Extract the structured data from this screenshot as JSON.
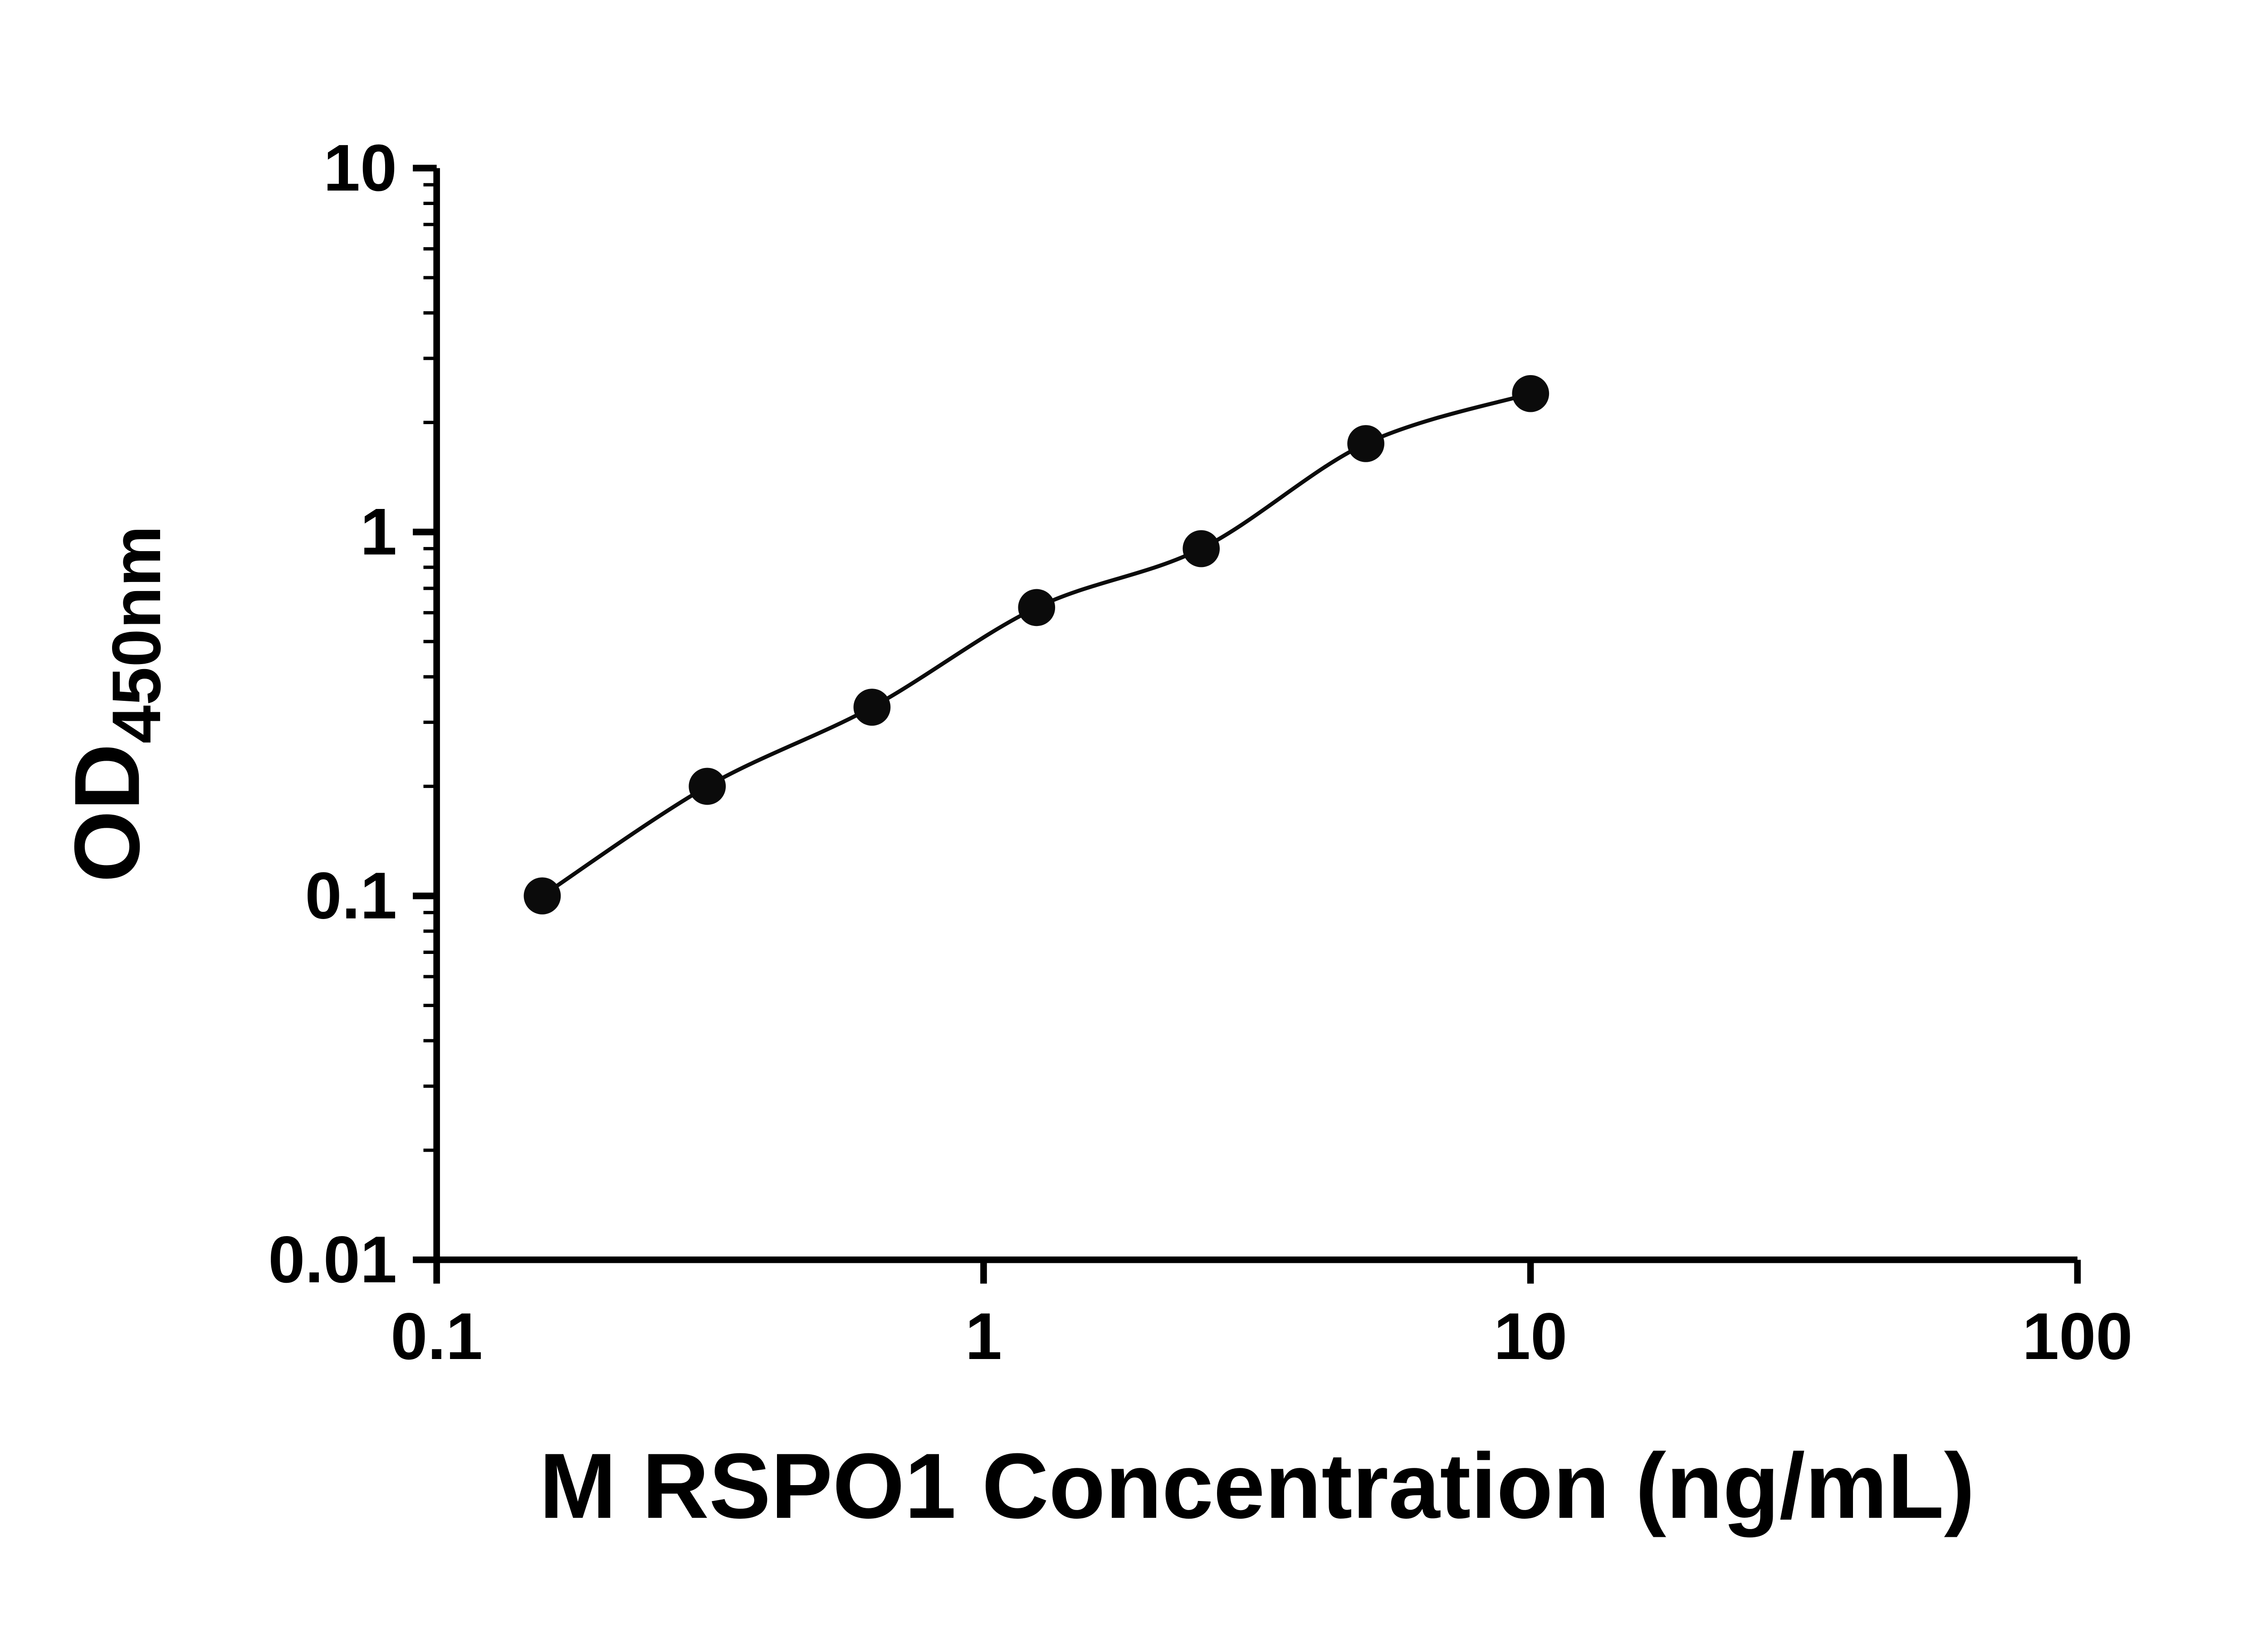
{
  "chart_data": {
    "type": "scatter",
    "subtype": "ELISA standard curve, smooth fit line through points",
    "title": "",
    "xlabel": "M RSPO1 Concentration (ng/mL)",
    "ylabel": "OD",
    "ylabel_subscript": "450nm",
    "xscale": "log10",
    "yscale": "log10",
    "xlim": [
      0.1,
      100
    ],
    "ylim": [
      0.01,
      10
    ],
    "x_ticks": [
      0.1,
      1,
      10,
      100
    ],
    "x_tick_labels": [
      "0.1",
      "1",
      "10",
      "100"
    ],
    "y_ticks": [
      0.01,
      0.1,
      1,
      10
    ],
    "y_tick_labels": [
      "0.01",
      "0.1",
      "1",
      "10"
    ],
    "x_minor_ticks": false,
    "y_minor_ticks": true,
    "grid": false,
    "legend": "none",
    "x": [
      0.156,
      0.3125,
      0.625,
      1.25,
      2.5,
      5,
      10
    ],
    "y": [
      0.1,
      0.2,
      0.33,
      0.62,
      0.9,
      1.75,
      2.4
    ],
    "marker": "filled-circle",
    "line": "smooth curve through data points"
  },
  "style": {
    "axis_color": "#000000",
    "marker_color": "#0b0b0b",
    "curve_color": "#0b0b0b",
    "background": "#ffffff"
  }
}
